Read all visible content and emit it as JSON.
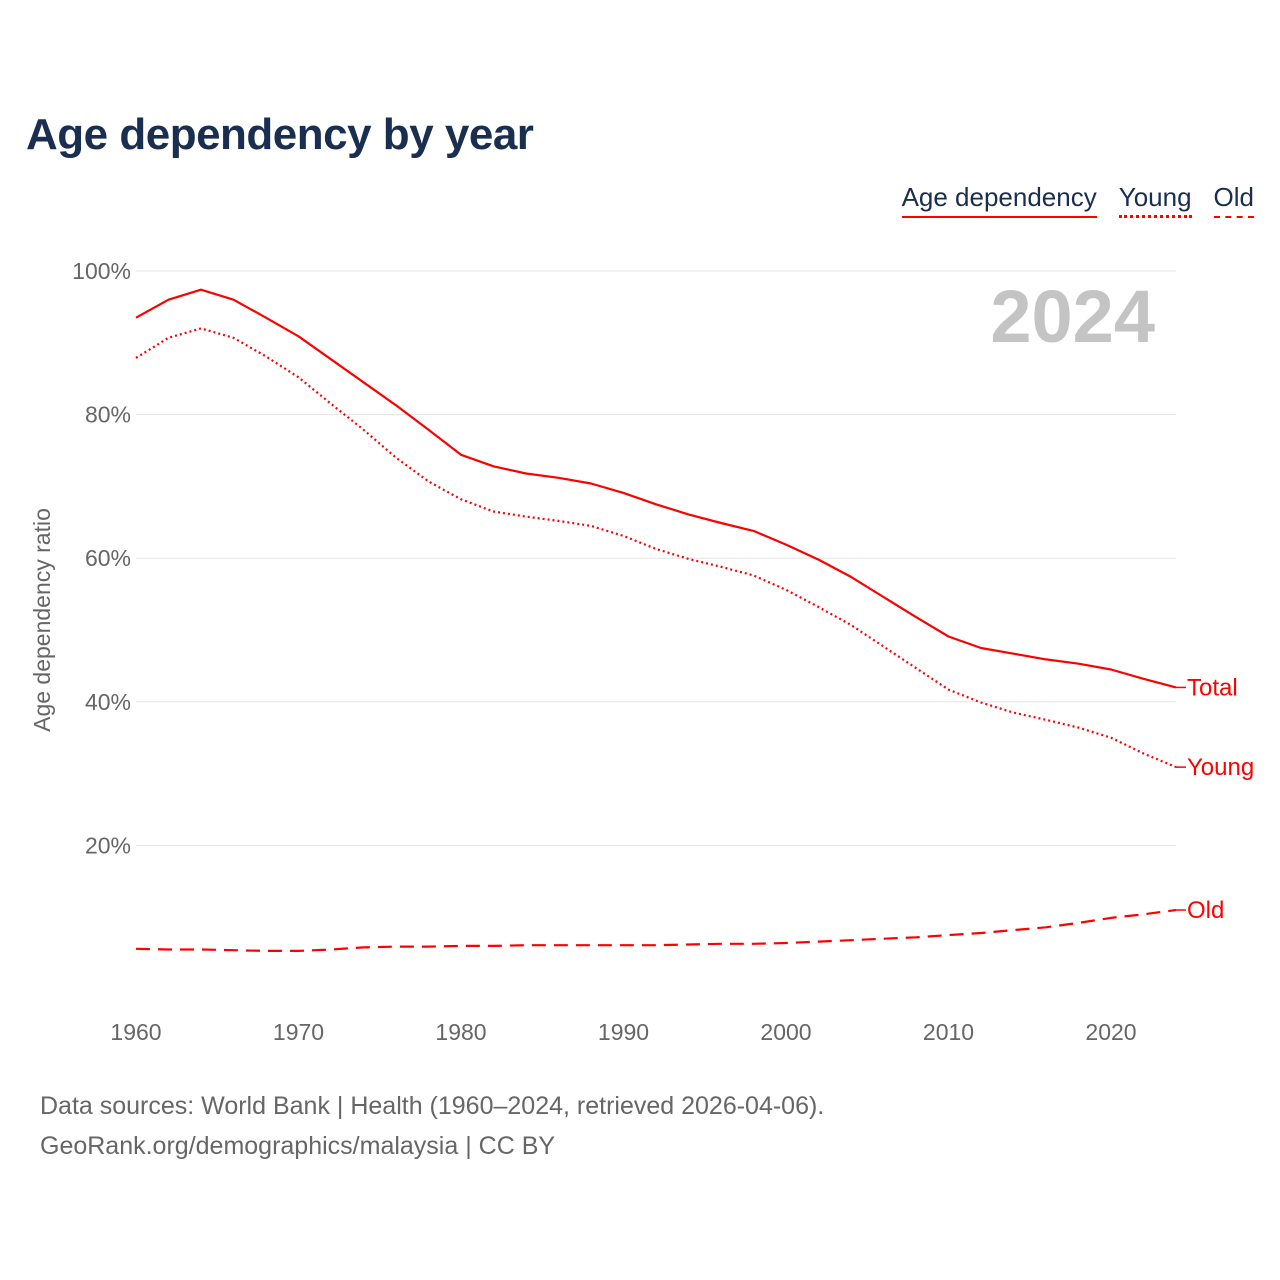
{
  "title": "Age dependency by year",
  "legend": [
    {
      "label": "Age dependency",
      "style": "solid"
    },
    {
      "label": "Young",
      "style": "dotted"
    },
    {
      "label": "Old",
      "style": "dashed"
    }
  ],
  "footer": {
    "line1": "Data sources: World Bank | Health (1960–2024, retrieved 2026-04-06).",
    "line2": "GeoRank.org/demographics/malaysia | CC BY"
  },
  "chart_data": {
    "type": "line",
    "title": "Age dependency by year",
    "ylabel": "Age dependency ratio",
    "xlabel": "",
    "year_label": "2024",
    "xlim": [
      1960,
      2024
    ],
    "ylim": [
      0,
      100
    ],
    "x_ticks": [
      "1960",
      "1970",
      "1980",
      "1990",
      "2000",
      "2010",
      "2020"
    ],
    "y_ticks": [
      "20%",
      "40%",
      "60%",
      "80%",
      "100%"
    ],
    "color": "#ff0000",
    "x": [
      1960,
      1962,
      1964,
      1966,
      1968,
      1970,
      1972,
      1974,
      1976,
      1978,
      1980,
      1982,
      1984,
      1986,
      1988,
      1990,
      1992,
      1994,
      1996,
      1998,
      2000,
      2002,
      2004,
      2006,
      2008,
      2010,
      2012,
      2014,
      2016,
      2018,
      2020,
      2022,
      2024
    ],
    "series": [
      {
        "name": "Total",
        "style": "solid",
        "values": [
          93.5,
          96.0,
          97.4,
          96.0,
          93.5,
          90.9,
          87.7,
          84.5,
          81.3,
          77.9,
          74.4,
          72.8,
          71.8,
          71.2,
          70.4,
          69.1,
          67.5,
          66.1,
          64.9,
          63.8,
          61.9,
          59.8,
          57.4,
          54.6,
          51.8,
          49.1,
          47.5,
          46.7,
          45.9,
          45.3,
          44.5,
          43.2,
          42.0
        ]
      },
      {
        "name": "Young",
        "style": "dotted",
        "values": [
          87.9,
          90.7,
          92.0,
          90.7,
          88.1,
          85.2,
          81.5,
          77.9,
          74.0,
          70.7,
          68.2,
          66.5,
          65.8,
          65.2,
          64.5,
          63.1,
          61.3,
          59.9,
          58.8,
          57.6,
          55.6,
          53.2,
          50.7,
          47.7,
          44.7,
          41.7,
          39.9,
          38.5,
          37.5,
          36.4,
          35.0,
          32.8,
          30.9
        ]
      },
      {
        "name": "Old",
        "style": "dashed",
        "values": [
          5.6,
          5.5,
          5.5,
          5.4,
          5.3,
          5.3,
          5.5,
          5.8,
          5.9,
          5.9,
          6.0,
          6.0,
          6.1,
          6.1,
          6.1,
          6.1,
          6.1,
          6.2,
          6.3,
          6.3,
          6.4,
          6.6,
          6.8,
          7.0,
          7.2,
          7.5,
          7.8,
          8.2,
          8.6,
          9.2,
          9.9,
          10.4,
          11.0
        ]
      }
    ]
  }
}
